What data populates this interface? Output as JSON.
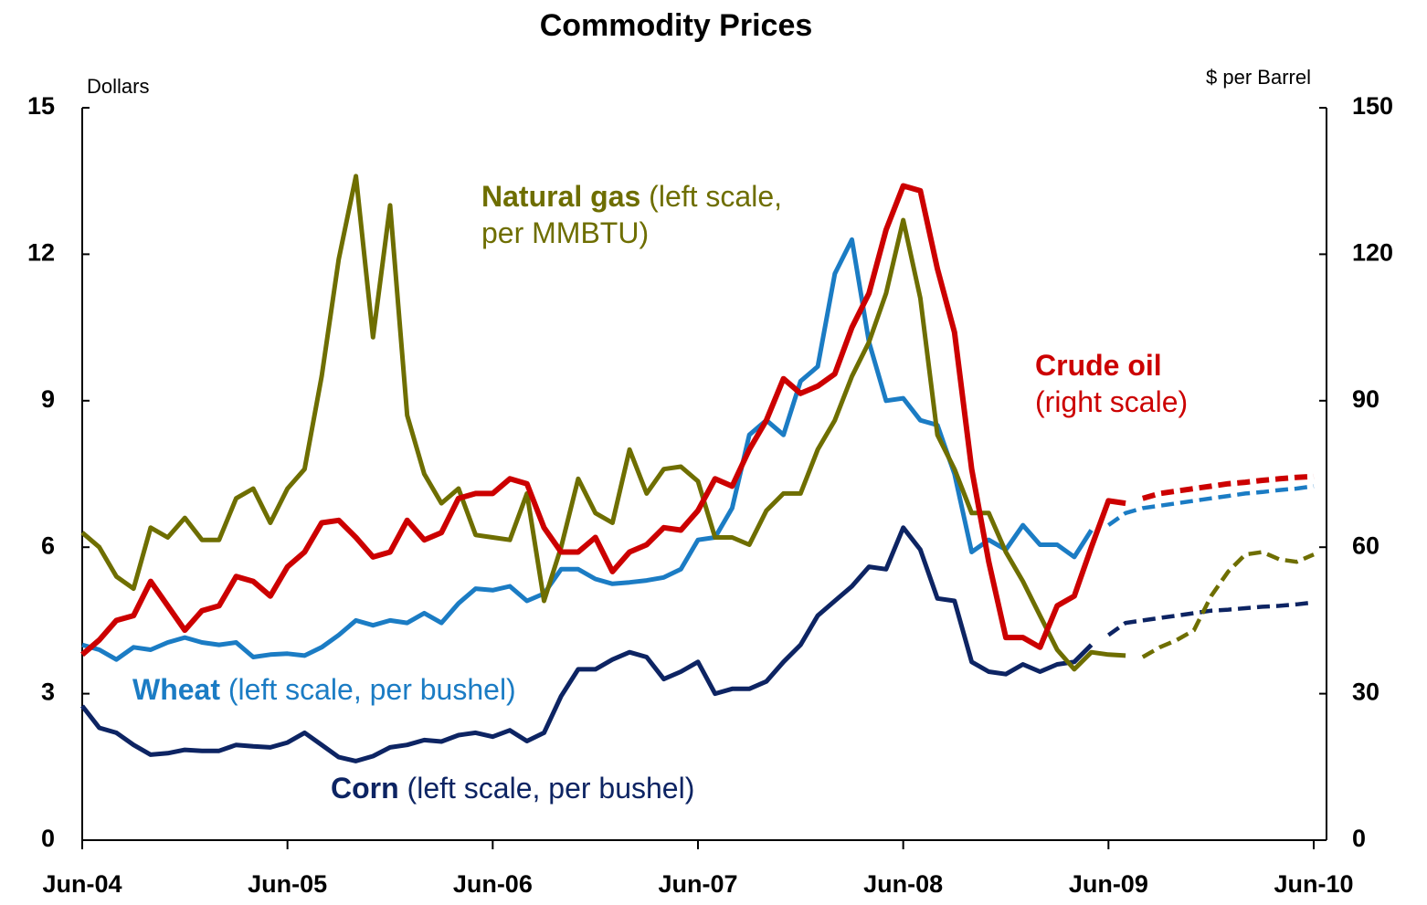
{
  "chart_data": {
    "type": "line",
    "title": "Commodity Prices",
    "y_label": "Dollars",
    "y2_label": "$ per Barrel",
    "categories": [
      "Jun-04",
      null,
      null,
      null,
      null,
      null,
      null,
      null,
      null,
      null,
      null,
      null,
      "Jun-05",
      null,
      null,
      null,
      null,
      null,
      null,
      null,
      null,
      null,
      null,
      null,
      "Jun-06",
      null,
      null,
      null,
      null,
      null,
      null,
      null,
      null,
      null,
      null,
      null,
      "Jun-07",
      null,
      null,
      null,
      null,
      null,
      null,
      null,
      null,
      null,
      null,
      null,
      "Jun-08",
      null,
      null,
      null,
      null,
      null,
      null,
      null,
      null,
      null,
      null,
      null,
      "Jun-09",
      null,
      null,
      null,
      null,
      null,
      null,
      null,
      null,
      null,
      null,
      null,
      "Jun-10"
    ],
    "ylim": [
      0,
      15
    ],
    "yticks": [
      0,
      3,
      6,
      9,
      12,
      15
    ],
    "y2lim": [
      0,
      150
    ],
    "y2ticks": [
      0,
      30,
      60,
      90,
      120,
      150
    ],
    "series": [
      {
        "name": "Corn",
        "note": "(left scale, per bushel)",
        "color": "#0d2463",
        "axis": "y",
        "values": [
          2.75,
          2.3,
          2.2,
          1.95,
          1.75,
          1.78,
          1.85,
          1.83,
          1.83,
          1.95,
          1.92,
          1.9,
          2.0,
          2.2,
          1.95,
          1.7,
          1.62,
          1.72,
          1.9,
          1.95,
          2.05,
          2.02,
          2.15,
          2.2,
          2.12,
          2.25,
          2.03,
          2.2,
          2.95,
          3.5,
          3.5,
          3.7,
          3.85,
          3.75,
          3.3,
          3.45,
          3.65,
          3.0,
          3.1,
          3.1,
          3.25,
          3.65,
          4.0,
          4.6,
          4.9,
          5.2,
          5.6,
          5.55,
          6.4,
          5.95,
          4.95,
          4.9,
          3.65,
          3.45,
          3.4,
          3.6,
          3.45,
          3.6,
          3.65,
          4.0,
          null,
          null,
          null,
          null,
          null,
          null,
          null,
          null,
          null,
          null,
          null,
          null,
          null
        ],
        "forecast": [
          null,
          null,
          null,
          null,
          null,
          null,
          null,
          null,
          null,
          null,
          null,
          null,
          null,
          null,
          null,
          null,
          null,
          null,
          null,
          null,
          null,
          null,
          null,
          null,
          null,
          null,
          null,
          null,
          null,
          null,
          null,
          null,
          null,
          null,
          null,
          null,
          null,
          null,
          null,
          null,
          null,
          null,
          null,
          null,
          null,
          null,
          null,
          null,
          null,
          null,
          null,
          null,
          null,
          null,
          null,
          null,
          null,
          null,
          null,
          null,
          4.2,
          4.45,
          4.5,
          4.55,
          4.6,
          4.65,
          4.7,
          4.72,
          4.75,
          4.78,
          4.8,
          4.83,
          4.87
        ]
      },
      {
        "name": "Wheat",
        "note": "(left scale, per bushel)",
        "color": "#1b7cc4",
        "axis": "y",
        "values": [
          4.0,
          3.9,
          3.7,
          3.95,
          3.9,
          4.05,
          4.15,
          4.05,
          4.0,
          4.05,
          3.75,
          3.8,
          3.82,
          3.78,
          3.95,
          4.2,
          4.5,
          4.4,
          4.5,
          4.45,
          4.65,
          4.45,
          4.85,
          5.15,
          5.12,
          5.2,
          4.9,
          5.05,
          5.55,
          5.55,
          5.35,
          5.25,
          5.28,
          5.32,
          5.38,
          5.55,
          6.15,
          6.2,
          6.8,
          8.3,
          8.6,
          8.3,
          9.4,
          9.7,
          11.6,
          12.3,
          10.2,
          9.0,
          9.05,
          8.6,
          8.5,
          7.5,
          5.9,
          6.15,
          5.95,
          6.45,
          6.05,
          6.05,
          5.8,
          6.35,
          null,
          null,
          null,
          null,
          null,
          null,
          null,
          null,
          null,
          null,
          null,
          null,
          null
        ],
        "forecast": [
          null,
          null,
          null,
          null,
          null,
          null,
          null,
          null,
          null,
          null,
          null,
          null,
          null,
          null,
          null,
          null,
          null,
          null,
          null,
          null,
          null,
          null,
          null,
          null,
          null,
          null,
          null,
          null,
          null,
          null,
          null,
          null,
          null,
          null,
          null,
          null,
          null,
          null,
          null,
          null,
          null,
          null,
          null,
          null,
          null,
          null,
          null,
          null,
          null,
          null,
          null,
          null,
          null,
          null,
          null,
          null,
          null,
          null,
          null,
          null,
          6.45,
          6.7,
          6.8,
          6.85,
          6.9,
          6.95,
          7.0,
          7.05,
          7.1,
          7.13,
          7.17,
          7.2,
          7.25
        ]
      },
      {
        "name": "Natural gas",
        "note": "(left scale, per MMBTU)",
        "color": "#6e6e00",
        "axis": "y",
        "values": [
          6.3,
          6.0,
          5.4,
          5.15,
          6.4,
          6.2,
          6.6,
          6.15,
          6.15,
          7.0,
          7.2,
          6.5,
          7.2,
          7.6,
          9.5,
          11.9,
          13.6,
          10.3,
          13.0,
          8.7,
          7.5,
          6.9,
          7.2,
          6.25,
          6.2,
          6.15,
          7.1,
          4.9,
          6.0,
          7.4,
          6.7,
          6.5,
          8.0,
          7.1,
          7.6,
          7.65,
          7.35,
          6.2,
          6.2,
          6.05,
          6.75,
          7.1,
          7.1,
          8.0,
          8.6,
          9.5,
          10.2,
          11.2,
          12.7,
          11.1,
          8.3,
          7.6,
          6.7,
          6.7,
          5.9,
          5.3,
          4.6,
          3.9,
          3.5,
          3.85,
          3.8,
          3.78,
          null,
          null,
          null,
          null,
          null,
          null,
          null,
          null,
          null,
          null,
          null
        ],
        "forecast": [
          null,
          null,
          null,
          null,
          null,
          null,
          null,
          null,
          null,
          null,
          null,
          null,
          null,
          null,
          null,
          null,
          null,
          null,
          null,
          null,
          null,
          null,
          null,
          null,
          null,
          null,
          null,
          null,
          null,
          null,
          null,
          null,
          null,
          null,
          null,
          null,
          null,
          null,
          null,
          null,
          null,
          null,
          null,
          null,
          null,
          null,
          null,
          null,
          null,
          null,
          null,
          null,
          null,
          null,
          null,
          null,
          null,
          null,
          null,
          null,
          null,
          null,
          3.75,
          3.95,
          4.1,
          4.3,
          5.0,
          5.5,
          5.85,
          5.9,
          5.75,
          5.7,
          5.85
        ]
      },
      {
        "name": "Crude oil",
        "note": "(right scale)",
        "color": "#cc0000",
        "axis": "y2",
        "values": [
          38,
          41,
          45,
          46,
          53,
          48,
          43,
          47,
          48,
          54,
          53,
          50,
          56,
          59,
          65,
          65.5,
          62,
          58,
          59,
          65.5,
          61.5,
          63,
          70,
          71,
          71,
          74,
          73,
          64,
          59,
          59,
          62,
          55,
          59,
          60.5,
          64,
          63.5,
          67.5,
          74,
          72.5,
          80,
          86,
          94.5,
          91.5,
          93,
          95.5,
          105,
          112,
          125,
          134,
          133,
          117,
          104,
          76,
          57,
          41.5,
          41.5,
          39.5,
          48,
          50,
          60,
          69.5,
          69,
          null,
          null,
          null,
          null,
          null,
          null,
          null,
          null,
          null,
          null,
          null
        ],
        "forecast": [
          null,
          null,
          null,
          null,
          null,
          null,
          null,
          null,
          null,
          null,
          null,
          null,
          null,
          null,
          null,
          null,
          null,
          null,
          null,
          null,
          null,
          null,
          null,
          null,
          null,
          null,
          null,
          null,
          null,
          null,
          null,
          null,
          null,
          null,
          null,
          null,
          null,
          null,
          null,
          null,
          null,
          null,
          null,
          null,
          null,
          null,
          null,
          null,
          null,
          null,
          null,
          null,
          null,
          null,
          null,
          null,
          null,
          null,
          null,
          null,
          null,
          null,
          70,
          71,
          71.5,
          72,
          72.5,
          73,
          73.3,
          73.7,
          74,
          74.3,
          74.5
        ]
      }
    ]
  }
}
